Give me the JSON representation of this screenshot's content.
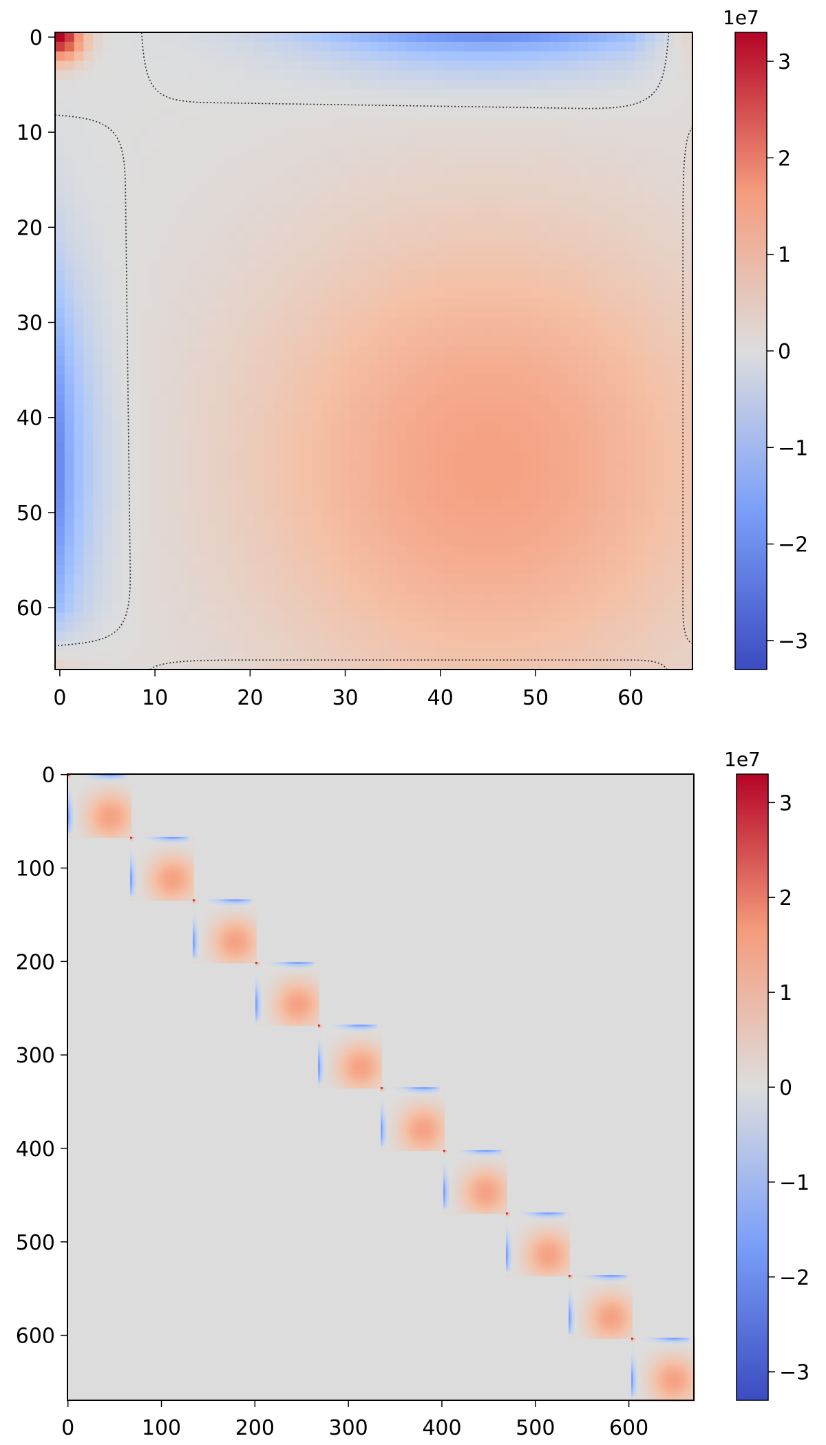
{
  "chart_data": [
    {
      "type": "heatmap",
      "title": "",
      "xlabel": "",
      "ylabel": "",
      "shape": [
        67,
        67
      ],
      "x_ticks": [
        0,
        10,
        20,
        30,
        40,
        50,
        60
      ],
      "y_ticks": [
        0,
        10,
        20,
        30,
        40,
        50,
        60
      ],
      "colormap": "coolwarm",
      "color_range": [
        -33000000.0,
        33000000.0
      ],
      "colorbar": {
        "ticks": [
          3,
          2,
          1,
          0,
          -1,
          -2,
          -3
        ],
        "tick_labels": [
          "3",
          "2",
          "1",
          "0",
          "−1",
          "−2",
          "−3"
        ],
        "offset_label": "1e7"
      },
      "contour": {
        "level": 0,
        "style": "dotted",
        "color": "#222222"
      },
      "features": {
        "corner_peak": {
          "at": [
            0,
            0
          ],
          "value": 33000000.0
        },
        "negative_edges": {
          "first_row_min": -19000000.0,
          "first_col_min": -20000000.0,
          "extent": 8
        },
        "central_max": {
          "at": [
            45,
            45
          ],
          "value": 15000000.0
        }
      }
    },
    {
      "type": "heatmap",
      "title": "",
      "xlabel": "",
      "ylabel": "",
      "shape": [
        670,
        670
      ],
      "structure": "block-diagonal",
      "block_size": 67,
      "block_count": 10,
      "x_ticks": [
        0,
        100,
        200,
        300,
        400,
        500,
        600
      ],
      "y_ticks": [
        0,
        100,
        200,
        300,
        400,
        500,
        600
      ],
      "colormap": "coolwarm",
      "color_range": [
        -33000000.0,
        33000000.0
      ],
      "colorbar": {
        "ticks": [
          3,
          2,
          1,
          0,
          -1,
          -2,
          -3
        ],
        "tick_labels": [
          "3",
          "2",
          "1",
          "0",
          "−1",
          "−2",
          "−3"
        ],
        "offset_label": "1e7"
      }
    }
  ]
}
